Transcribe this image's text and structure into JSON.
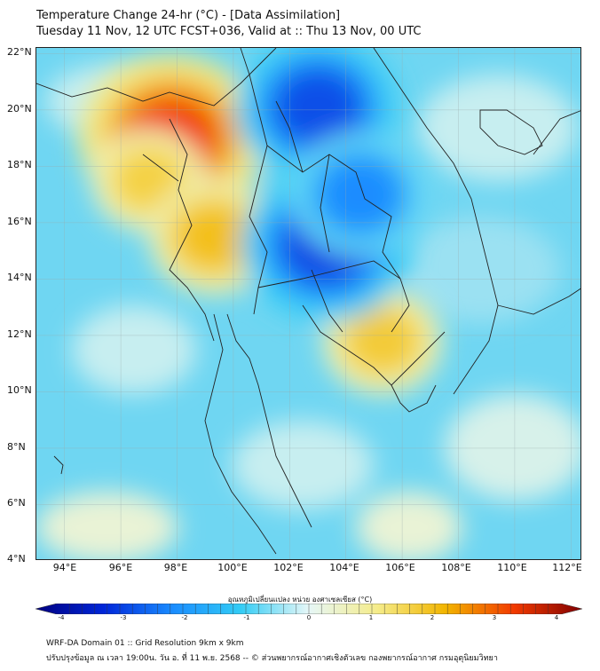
{
  "header": {
    "title": "Temperature Change 24-hr (°C) - [Data Assimilation]",
    "subtitle": "Tuesday 11 Nov, 12 UTC FCST+036, Valid at :: Thu 13 Nov, 00 UTC"
  },
  "map": {
    "lat_labels": [
      "22°N",
      "20°N",
      "18°N",
      "16°N",
      "14°N",
      "12°N",
      "10°N",
      "8°N",
      "6°N",
      "4°N"
    ],
    "lon_labels": [
      "94°E",
      "96°E",
      "98°E",
      "100°E",
      "102°E",
      "104°E",
      "106°E",
      "108°E",
      "110°E",
      "112°E"
    ],
    "lat_range": [
      4,
      22.2
    ],
    "lon_range": [
      93.0,
      112.4
    ],
    "anomalies": [
      {
        "name": "warm-myanmar-north",
        "lon": 97.8,
        "lat": 19.0,
        "value": 3.0
      },
      {
        "name": "warm-myanmar",
        "lon": 97.0,
        "lat": 17.5,
        "value": 1.5
      },
      {
        "name": "warm-west-thailand",
        "lon": 99.3,
        "lat": 15.5,
        "value": 1.8
      },
      {
        "name": "warm-cambodia",
        "lon": 105.3,
        "lat": 11.8,
        "value": 1.6
      },
      {
        "name": "cold-laos-north",
        "lon": 103.0,
        "lat": 20.1,
        "value": -2.6
      },
      {
        "name": "cold-northeast-thailand",
        "lon": 103.3,
        "lat": 15.2,
        "value": -2.7
      },
      {
        "name": "cold-laos-central",
        "lon": 104.5,
        "lat": 17.0,
        "value": -2.0
      }
    ]
  },
  "colorbar": {
    "label": "อุณหภูมิเปลี่ยนแปลง หน่วย องศาเซลเซียส (°C)",
    "ticks": [
      "-4",
      "-3",
      "-2",
      "-1",
      "0",
      "1",
      "2",
      "3",
      "4"
    ],
    "range": [
      -4,
      4
    ],
    "colors": {
      "neg4": "#000080",
      "neg3": "#0026d9",
      "neg2": "#1a8cff",
      "neg1": "#33ccf5",
      "zero": "#e6f7f7",
      "pos1": "#f5ec8a",
      "pos2": "#f2b500",
      "pos3": "#f23a00",
      "pos4": "#800000"
    }
  },
  "footer": {
    "line1": "WRF-DA Domain 01 :: Grid Resolution 9km x 9km",
    "line2": "ปรับปรุงข้อมูล ณ เวลา 19:00น. วัน อ. ที่ 11 พ.ย. 2568 -- © ส่วนพยากรณ์อากาศเชิงตัวเลข กองพยากรณ์อากาศ กรมอุตุนิยมวิทยา"
  }
}
